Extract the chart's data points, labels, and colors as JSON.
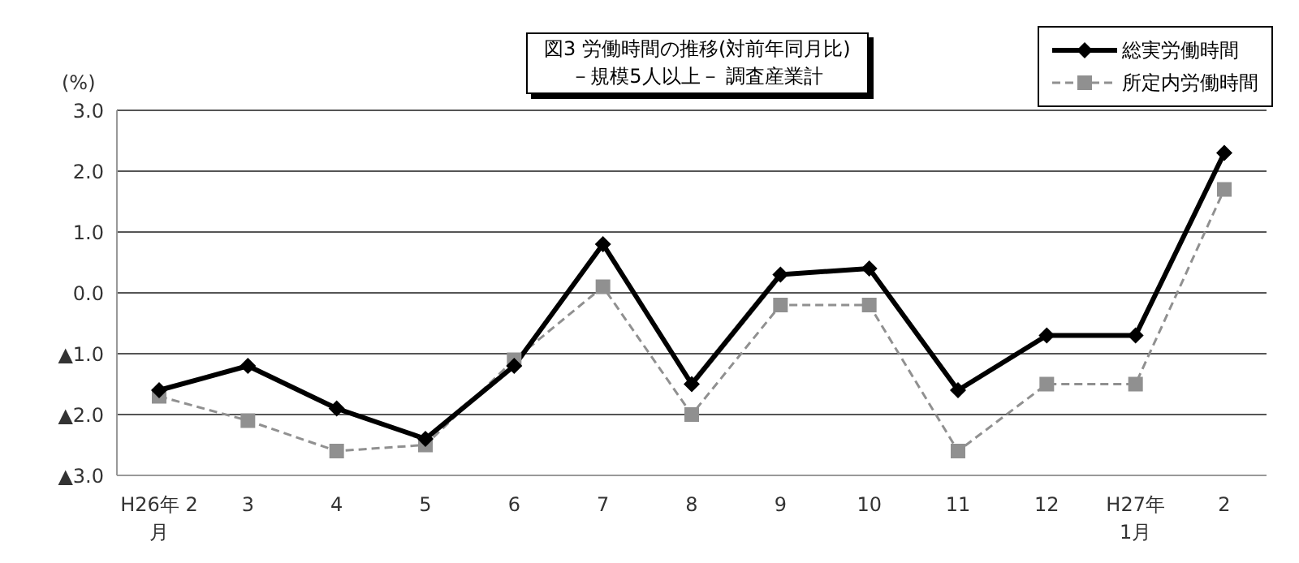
{
  "chart_data": {
    "type": "line",
    "title": "図3 労働時間の推移(対前年同月比)",
    "subtitle": "－規模5人以上－ 調査産業計",
    "ylabel": "(%)",
    "categories": [
      "H26年 2\n月",
      "3",
      "4",
      "5",
      "6",
      "7",
      "8",
      "9",
      "10",
      "11",
      "12",
      "H27年\n1月",
      "2"
    ],
    "series": [
      {
        "name": "総実労働時間",
        "color": "#000000",
        "marker": "diamond",
        "line_style": "solid",
        "values": [
          -1.6,
          -1.2,
          -1.9,
          -2.4,
          -1.2,
          0.8,
          -1.5,
          0.3,
          0.4,
          -1.6,
          -0.7,
          -0.7,
          2.3
        ]
      },
      {
        "name": "所定内労働時間",
        "color": "#909090",
        "marker": "square",
        "line_style": "dashed",
        "values": [
          -1.7,
          -2.1,
          -2.6,
          -2.5,
          -1.1,
          0.1,
          -2.0,
          -0.2,
          -0.2,
          -2.6,
          -1.5,
          -1.5,
          1.7
        ]
      }
    ],
    "ylim": [
      -3,
      3
    ],
    "yticks": [
      {
        "value": -3,
        "label": "▲3.0"
      },
      {
        "value": -2,
        "label": "▲2.0"
      },
      {
        "value": -1,
        "label": "▲1.0"
      },
      {
        "value": 0,
        "label": "0.0"
      },
      {
        "value": 1,
        "label": "1.0"
      },
      {
        "value": 2,
        "label": "2.0"
      },
      {
        "value": 3,
        "label": "3.0"
      }
    ],
    "grid": "y",
    "legend": "top right"
  }
}
